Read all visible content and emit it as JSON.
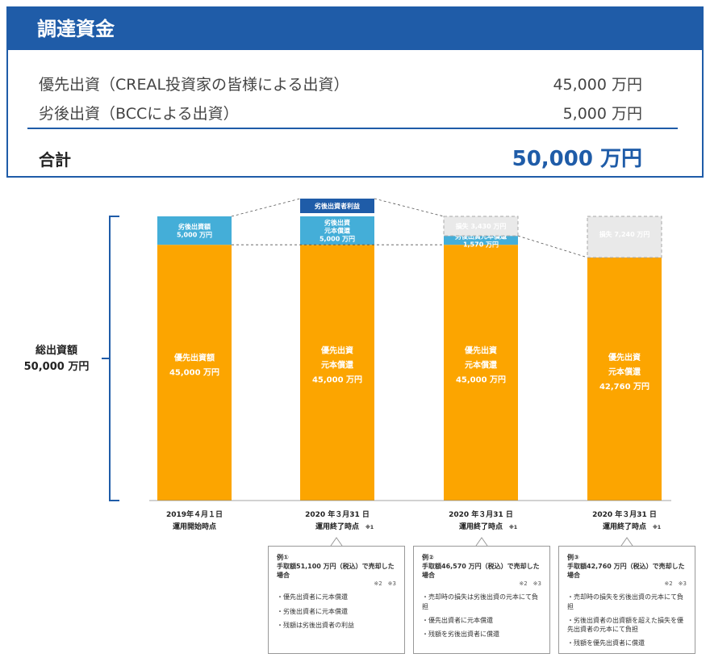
{
  "summary": {
    "title": "調達資金",
    "rows": [
      {
        "label": "優先出資（CREAL投資家の皆様による出資）",
        "value": "45,000 万円"
      },
      {
        "label": "劣後出資（BCCによる出資）",
        "value": "5,000 万円"
      }
    ],
    "total_label": "合計",
    "total_value": "50,000 万円"
  },
  "chart_data": {
    "type": "bar",
    "stacked": true,
    "ylim": [
      0,
      50000
    ],
    "total_label": [
      "総出資額",
      "50,000 万円"
    ],
    "colors": {
      "senior": "#fca500",
      "junior": "#44aed8",
      "loss": "#e9e9e9",
      "profit": "#1f5ca8"
    },
    "categories": [
      {
        "line1": "2019年４月１日",
        "line2": "運用開始時点",
        "ref": ""
      },
      {
        "line1": "2020 年３月31 日",
        "line2": "運用終了時点",
        "ref": "※1"
      },
      {
        "line1": "2020 年３月31 日",
        "line2": "運用終了時点",
        "ref": "※1"
      },
      {
        "line1": "2020 年３月31 日",
        "line2": "運用終了時点",
        "ref": "※1"
      }
    ],
    "series": [
      {
        "key": "senior",
        "values": [
          45000,
          45000,
          45000,
          42760
        ],
        "labels": [
          [
            "優先出資額",
            "45,000 万円"
          ],
          [
            "優先出資",
            "元本償還",
            "45,000 万円"
          ],
          [
            "優先出資",
            "元本償還",
            "45,000 万円"
          ],
          [
            "優先出資",
            "元本償還",
            "42,760 万円"
          ]
        ]
      },
      {
        "key": "junior",
        "values": [
          5000,
          5000,
          1570,
          0
        ],
        "labels": [
          [
            "劣後出資額",
            "5,000 万円"
          ],
          [
            "劣後出資",
            "元本償還",
            "5,000 万円"
          ],
          [
            "劣後出資元本償還",
            "1,570 万円"
          ],
          []
        ]
      },
      {
        "key": "loss",
        "values": [
          0,
          0,
          3430,
          7240
        ],
        "labels": [
          [],
          [],
          [
            "損失 3,430 万円"
          ],
          [
            "損失 7,240 万円"
          ]
        ]
      }
    ],
    "profit_label": "劣後出資者利益"
  },
  "notes": [
    {
      "title": "例①",
      "subtitle": "手取額51,100 万円（税込）で売却した場合",
      "refs": "※2　※3",
      "items": [
        "・優先出資者に元本償還",
        "・劣後出資者に元本償還",
        "・残額は劣後出資者の利益"
      ]
    },
    {
      "title": "例②",
      "subtitle": "手取額46,570 万円（税込）で売却した場合",
      "refs": "※2　※3",
      "items": [
        "・売却時の損失は劣後出資の元本にて負担",
        "・優先出資者に元本償還",
        "・残額を劣後出資者に償還"
      ]
    },
    {
      "title": "例③",
      "subtitle": "手取額42,760 万円（税込）で売却した場合",
      "refs": "※2　※3",
      "items": [
        "・売却時の損失を劣後出資の元本にて負担",
        "・劣後出資者の出資額を超えた損失を優先出資者の元本にて負担",
        "・残額を優先出資者に償還"
      ]
    }
  ]
}
